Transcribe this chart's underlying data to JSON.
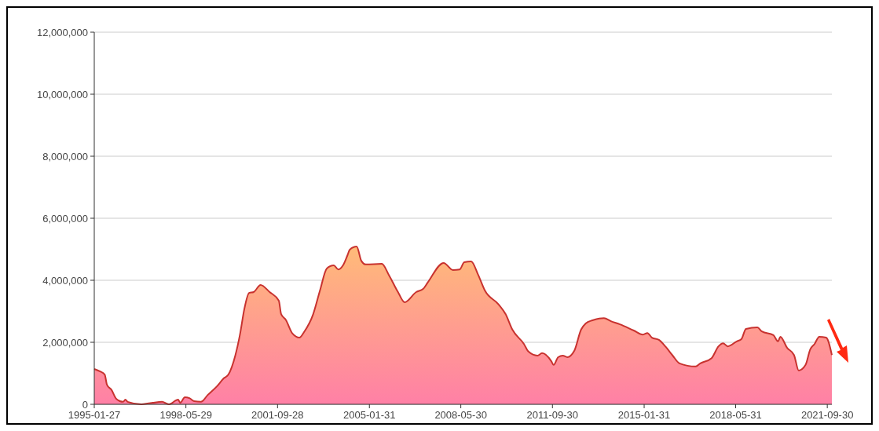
{
  "chart_data": {
    "type": "area",
    "x": [
      "1995-01-27",
      "1995-04",
      "1995-06",
      "1995-07",
      "1995-09",
      "1995-11",
      "1996-02",
      "1996-03",
      "1996-04",
      "1996-10",
      "1997-01",
      "1997-03",
      "1997-07",
      "1997-10",
      "1998-02",
      "1998-03",
      "1998-05",
      "1998-07",
      "1998-09",
      "1998-12",
      "1999-03",
      "1999-07",
      "1999-10",
      "1999-12",
      "2000-03",
      "2000-05",
      "2000-07",
      "2000-09",
      "2000-11",
      "2001-02",
      "2001-06",
      "2001-10",
      "2001-11",
      "2002-01",
      "2002-04",
      "2002-07",
      "2002-09",
      "2003-01",
      "2003-04",
      "2003-07",
      "2003-10",
      "2003-12",
      "2004-02",
      "2004-04",
      "2004-05",
      "2004-08",
      "2004-10",
      "2004-12",
      "2005-07",
      "2005-10",
      "2006-02",
      "2006-05",
      "2006-10",
      "2007-01",
      "2007-03",
      "2007-10",
      "2008-02",
      "2008-05",
      "2008-07",
      "2008-10",
      "2009-01",
      "2009-04",
      "2009-10",
      "2010-01",
      "2010-04",
      "2010-09",
      "2010-11",
      "2011-03",
      "2011-05",
      "2011-09",
      "2011-10",
      "2011-12",
      "2012-02",
      "2012-04",
      "2012-07",
      "2012-10",
      "2012-12",
      "2013-03",
      "2013-08",
      "2013-11",
      "2014-03",
      "2014-09",
      "2015-01",
      "2015-03",
      "2015-05",
      "2015-08",
      "2015-11",
      "2016-02",
      "2016-05",
      "2016-12",
      "2017-02",
      "2017-07",
      "2017-10",
      "2017-12",
      "2018-02",
      "2018-06",
      "2018-08",
      "2018-10",
      "2019-03",
      "2019-05",
      "2019-10",
      "2019-12",
      "2020-01",
      "2020-04",
      "2020-07",
      "2020-09",
      "2020-12",
      "2021-02",
      "2021-04",
      "2021-06",
      "2021-09",
      "2021-11-30"
    ],
    "series": [
      {
        "color": "#c8322f",
        "values": [
          1140000,
          1060000,
          960000,
          630000,
          460000,
          180000,
          80000,
          150000,
          80000,
          0,
          30000,
          50000,
          80000,
          0,
          150000,
          50000,
          230000,
          200000,
          100000,
          80000,
          300000,
          580000,
          840000,
          960000,
          1570000,
          2230000,
          3090000,
          3590000,
          3620000,
          3850000,
          3620000,
          3340000,
          2910000,
          2730000,
          2280000,
          2150000,
          2330000,
          2910000,
          3670000,
          4380000,
          4480000,
          4350000,
          4480000,
          4810000,
          4990000,
          5090000,
          4630000,
          4510000,
          4530000,
          4180000,
          3620000,
          3290000,
          3620000,
          3720000,
          3920000,
          4560000,
          4330000,
          4350000,
          4580000,
          4610000,
          4180000,
          3670000,
          3220000,
          2910000,
          2410000,
          1950000,
          1700000,
          1570000,
          1650000,
          1390000,
          1270000,
          1520000,
          1570000,
          1520000,
          1720000,
          2410000,
          2610000,
          2710000,
          2780000,
          2680000,
          2580000,
          2380000,
          2250000,
          2300000,
          2150000,
          2080000,
          1850000,
          1570000,
          1320000,
          1220000,
          1320000,
          1490000,
          1870000,
          1970000,
          1870000,
          2030000,
          2100000,
          2430000,
          2480000,
          2350000,
          2230000,
          2030000,
          2180000,
          1820000,
          1590000,
          1090000,
          1270000,
          1770000,
          1950000,
          2180000,
          2150000,
          1590000
        ]
      }
    ],
    "xlim": [
      "1995-01-27",
      "2021-11-30"
    ],
    "xticks": [
      "1995-01-27",
      "1998-05-29",
      "2001-09-28",
      "2005-01-31",
      "2008-05-30",
      "2011-09-30",
      "2015-01-31",
      "2018-05-31",
      "2021-09-30"
    ],
    "ylim": [
      0,
      12000000
    ],
    "yticks": [
      0,
      {
        "value": 2000000,
        "label": "2,000,000"
      },
      {
        "value": 4000000,
        "label": "4,000,000"
      },
      {
        "value": 6000000,
        "label": "6,000,000"
      },
      {
        "value": 8000000,
        "label": "8,000,000"
      },
      {
        "value": 10000000,
        "label": "10,000,000"
      },
      {
        "value": 12000000,
        "label": "12,000,000"
      }
    ],
    "grid": "y"
  }
}
